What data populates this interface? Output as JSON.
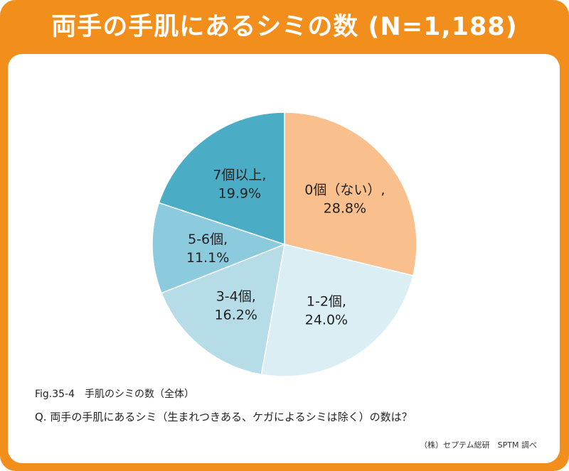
{
  "header": {
    "title": "両手の手肌にあるシミの数 (N=1,188)"
  },
  "chart_data": {
    "type": "pie",
    "start": "12 o'clock, clockwise",
    "slices": [
      {
        "label": "0個（ない）,",
        "value": 28.8,
        "value_text": "28.8%",
        "color": "#f9bf8d"
      },
      {
        "label": "1-2個,",
        "value": 24.0,
        "value_text": "24.0%",
        "color": "#daeef4"
      },
      {
        "label": "3-4個,",
        "value": 16.2,
        "value_text": "16.2%",
        "color": "#b6dce7"
      },
      {
        "label": "5-6個,",
        "value": 11.1,
        "value_text": "11.1%",
        "color": "#8ccadd"
      },
      {
        "label": "7個以上,",
        "value": 19.9,
        "value_text": "19.9%",
        "color": "#4bacc6"
      }
    ]
  },
  "footer": {
    "caption": "Fig.35-4　手肌のシミの数（全体）",
    "question": "Q. 両手の手肌にあるシミ（生まれつきある、ケガによるシミは除く）の数は？",
    "source": "（株）セプテム総研　SPTM 調べ"
  }
}
